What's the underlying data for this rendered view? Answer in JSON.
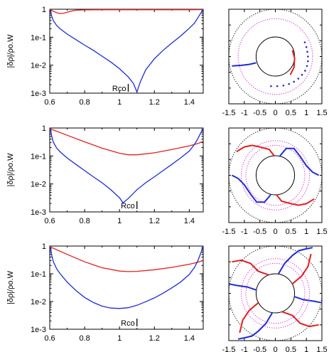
{
  "colors": {
    "red": "#e02020",
    "blue": "#1f2bd6",
    "magenta": "#d020d0",
    "black": "#000000"
  },
  "chart_data": [
    {
      "type": "line",
      "panel": "top-left",
      "yscale": "log",
      "ylabel": "|δρ|/ρo.W",
      "annotation": "Rco",
      "xlim": [
        0.6,
        1.48
      ],
      "ylim": [
        0.001,
        1
      ],
      "xticks": [
        "0.6",
        "0.8",
        "1",
        "1.2",
        "1.4"
      ],
      "yticks": [
        "1",
        "1e-1",
        "1e-2",
        "1e-3"
      ],
      "series": [
        {
          "color": "red",
          "x": [
            0.6,
            0.62,
            0.64,
            0.66,
            0.68,
            0.7,
            0.72,
            0.75,
            0.8,
            0.9,
            1.0,
            1.1,
            1.2,
            1.3,
            1.4,
            1.48
          ],
          "y": [
            1.0,
            0.85,
            0.75,
            0.7,
            0.72,
            0.78,
            0.85,
            0.92,
            0.95,
            0.96,
            0.96,
            0.96,
            0.96,
            0.96,
            0.96,
            0.97
          ]
        },
        {
          "color": "blue",
          "x": [
            0.605,
            0.61,
            0.62,
            0.64,
            0.66,
            0.7,
            0.75,
            0.8,
            0.85,
            0.9,
            0.95,
            1.0,
            1.05,
            1.08,
            1.1,
            1.12,
            1.15,
            1.2,
            1.25,
            1.3,
            1.35,
            1.4,
            1.43,
            1.45,
            1.47,
            1.48
          ],
          "y": [
            0.9,
            0.6,
            0.4,
            0.26,
            0.2,
            0.13,
            0.082,
            0.052,
            0.034,
            0.021,
            0.013,
            0.0075,
            0.0038,
            0.0022,
            0.0011,
            0.0026,
            0.0068,
            0.017,
            0.034,
            0.062,
            0.11,
            0.21,
            0.32,
            0.5,
            0.8,
            1.0
          ]
        }
      ]
    },
    {
      "type": "line",
      "panel": "middle-left",
      "yscale": "log",
      "ylabel": "|δρ|/ρo.W",
      "annotation": "Rco",
      "xlim": [
        0.6,
        1.48
      ],
      "ylim": [
        0.001,
        1
      ],
      "xticks": [
        "0.6",
        "0.8",
        "1",
        "1.2",
        "1.4"
      ],
      "yticks": [
        "1",
        "1e-1",
        "1e-2",
        "1e-3"
      ],
      "series": [
        {
          "color": "red",
          "x": [
            0.6,
            0.7,
            0.8,
            0.9,
            1.0,
            1.05,
            1.1,
            1.2,
            1.3,
            1.4,
            1.45,
            1.48
          ],
          "y": [
            0.95,
            0.55,
            0.32,
            0.19,
            0.125,
            0.11,
            0.11,
            0.13,
            0.17,
            0.23,
            0.28,
            0.33
          ]
        },
        {
          "color": "blue",
          "x": [
            0.605,
            0.61,
            0.62,
            0.64,
            0.66,
            0.7,
            0.75,
            0.8,
            0.85,
            0.9,
            0.95,
            1.0,
            1.02,
            1.05,
            1.1,
            1.15,
            1.2,
            1.25,
            1.3,
            1.35,
            1.4,
            1.43,
            1.45,
            1.47,
            1.48
          ],
          "y": [
            0.9,
            0.55,
            0.32,
            0.19,
            0.14,
            0.085,
            0.05,
            0.03,
            0.018,
            0.011,
            0.0062,
            0.0032,
            0.0021,
            0.003,
            0.0062,
            0.011,
            0.018,
            0.03,
            0.05,
            0.085,
            0.15,
            0.26,
            0.42,
            0.75,
            1.0
          ]
        }
      ]
    },
    {
      "type": "line",
      "panel": "bottom-left",
      "yscale": "log",
      "ylabel": "|δρ|/ρo.W",
      "annotation": "Rco",
      "xlim": [
        0.6,
        1.48
      ],
      "ylim": [
        0.001,
        1
      ],
      "xticks": [
        "0.6",
        "0.8",
        "1",
        "1.2",
        "1.4"
      ],
      "yticks": [
        "1",
        "1e-1",
        "1e-2",
        "1e-3"
      ],
      "series": [
        {
          "color": "red",
          "x": [
            0.6,
            0.7,
            0.8,
            0.9,
            1.0,
            1.05,
            1.1,
            1.2,
            1.3,
            1.4,
            1.45,
            1.48
          ],
          "y": [
            0.95,
            0.5,
            0.27,
            0.165,
            0.125,
            0.12,
            0.122,
            0.14,
            0.17,
            0.22,
            0.26,
            0.3
          ]
        },
        {
          "color": "blue",
          "x": [
            0.605,
            0.61,
            0.62,
            0.64,
            0.66,
            0.7,
            0.75,
            0.8,
            0.85,
            0.9,
            0.95,
            1.0,
            1.05,
            1.1,
            1.15,
            1.2,
            1.25,
            1.3,
            1.35,
            1.4,
            1.43,
            1.45,
            1.47,
            1.48
          ],
          "y": [
            0.9,
            0.5,
            0.28,
            0.15,
            0.1,
            0.05,
            0.025,
            0.014,
            0.0092,
            0.0068,
            0.0058,
            0.0056,
            0.006,
            0.0073,
            0.0098,
            0.0135,
            0.02,
            0.031,
            0.05,
            0.095,
            0.17,
            0.3,
            0.65,
            1.0
          ]
        }
      ]
    },
    {
      "type": "scatter",
      "panel": "top-right",
      "plot": "polar-map",
      "xlim": [
        -1.5,
        1.5
      ],
      "ylim": [
        -1.5,
        1.5
      ],
      "xticks": [
        "-1.5",
        "-1",
        "-0.5",
        "0",
        "0.5",
        "1",
        "1.5"
      ],
      "circles": [
        {
          "r": 1.5,
          "style": "black-dotted"
        },
        {
          "r": 1.2,
          "style": "magenta-dotted"
        },
        {
          "r": 0.62,
          "style": "black-solid"
        }
      ],
      "red_arms": [
        {
          "x": [
            0.55,
            0.62,
            0.6,
            0.48
          ],
          "y": [
            0.2,
            -0.05,
            -0.35,
            -0.58
          ]
        }
      ],
      "blue_arms": [
        {
          "x": [
            -0.62,
            -0.85,
            -1.1,
            -1.4
          ],
          "y": [
            -0.2,
            -0.25,
            -0.28,
            -0.3
          ]
        }
      ],
      "blue_dots": {
        "x": [
          0.95,
          1.0,
          1.03,
          1.05,
          1.05,
          1.02,
          0.96,
          0.86,
          0.74,
          0.6,
          0.44,
          0.26,
          0.06,
          -0.14
        ],
        "y": [
          0.45,
          0.3,
          0.15,
          0.0,
          -0.15,
          -0.3,
          -0.45,
          -0.58,
          -0.7,
          -0.8,
          -0.87,
          -0.92,
          -0.94,
          -0.94
        ]
      }
    },
    {
      "type": "scatter",
      "panel": "middle-right",
      "plot": "polar-map",
      "xlim": [
        -1.5,
        1.5
      ],
      "ylim": [
        -1.5,
        1.5
      ],
      "xticks": [
        "-1.5",
        "-1",
        "-0.5",
        "0",
        "0.5",
        "1",
        "1.5"
      ],
      "circles": [
        {
          "r": 1.5,
          "style": "black-dotted"
        },
        {
          "r": 1.1,
          "style": "magenta-dotted"
        },
        {
          "r": 0.95,
          "style": "magenta-dotted"
        },
        {
          "r": 0.62,
          "style": "black-solid"
        }
      ],
      "red_arms": [
        {
          "x": [
            -0.04,
            -0.2,
            -0.5,
            -0.75,
            -1.0,
            -1.25
          ],
          "y": [
            0.62,
            0.82,
            0.9,
            0.95,
            0.9,
            0.75
          ]
        },
        {
          "x": [
            0.04,
            0.2,
            0.5,
            0.75,
            1.0,
            1.25
          ],
          "y": [
            -0.62,
            -0.82,
            -0.9,
            -0.95,
            -0.9,
            -0.75
          ]
        }
      ],
      "blue_arms": [
        {
          "x": [
            0.15,
            0.35,
            0.6,
            0.8,
            1.0,
            1.2,
            1.4
          ],
          "y": [
            0.62,
            0.85,
            0.85,
            0.6,
            0.3,
            0.1,
            0.0
          ]
        },
        {
          "x": [
            -0.15,
            -0.35,
            -0.6,
            -0.8,
            -1.0,
            -1.2,
            -1.4
          ],
          "y": [
            -0.62,
            -0.85,
            -0.85,
            -0.6,
            -0.3,
            -0.1,
            0.0
          ]
        }
      ]
    },
    {
      "type": "scatter",
      "panel": "bottom-right",
      "plot": "polar-map",
      "xlim": [
        -1.5,
        1.5
      ],
      "ylim": [
        -1.5,
        1.5
      ],
      "xticks": [
        "-1.5",
        "-1",
        "-0.5",
        "0",
        "0.5",
        "1",
        "1.5"
      ],
      "circles": [
        {
          "r": 1.5,
          "style": "black-dotted"
        },
        {
          "r": 1.1,
          "style": "magenta-dotted"
        },
        {
          "r": 0.95,
          "style": "magenta-dotted"
        },
        {
          "r": 0.62,
          "style": "black-solid"
        }
      ],
      "red_arms": [
        {
          "x": [
            -0.2,
            -0.55,
            -0.8,
            -1.1,
            -1.4
          ],
          "y": [
            0.58,
            0.7,
            0.95,
            1.05,
            1.0
          ]
        },
        {
          "x": [
            0.2,
            0.55,
            0.8,
            1.1,
            1.4
          ],
          "y": [
            -0.58,
            -0.7,
            -0.95,
            -1.05,
            -1.0
          ]
        },
        {
          "x": [
            0.55,
            0.85,
            1.05,
            1.15
          ],
          "y": [
            0.3,
            0.55,
            0.85,
            1.25
          ]
        },
        {
          "x": [
            -0.55,
            -0.85,
            -1.05,
            -1.15
          ],
          "y": [
            -0.3,
            -0.55,
            -0.85,
            -1.25
          ]
        }
      ],
      "blue_arms": [
        {
          "x": [
            0.1,
            0.3,
            0.55,
            0.75,
            0.95,
            1.2
          ],
          "y": [
            0.62,
            0.95,
            1.2,
            1.35,
            1.4,
            1.45
          ]
        },
        {
          "x": [
            -0.1,
            -0.3,
            -0.55,
            -0.75,
            -0.95,
            -1.2
          ],
          "y": [
            -0.62,
            -0.95,
            -1.2,
            -1.35,
            -1.4,
            -1.45
          ]
        },
        {
          "x": [
            -0.6,
            -0.9,
            -1.25,
            -1.5
          ],
          "y": [
            0.1,
            0.2,
            0.25,
            0.3
          ]
        },
        {
          "x": [
            0.6,
            0.9,
            1.25,
            1.5
          ],
          "y": [
            -0.1,
            -0.2,
            -0.25,
            -0.3
          ]
        }
      ]
    }
  ]
}
